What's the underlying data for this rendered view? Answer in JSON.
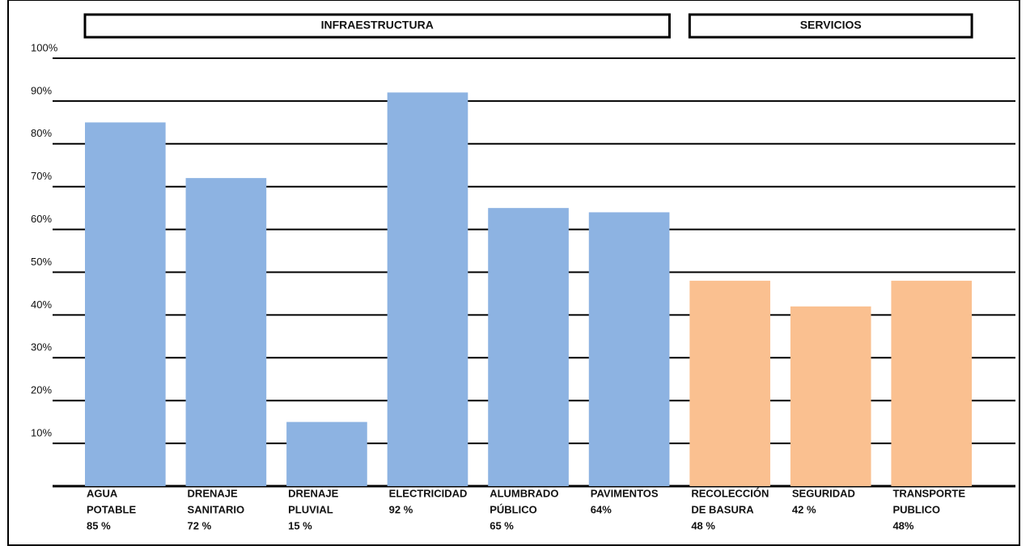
{
  "chart_data": {
    "type": "bar",
    "groups": [
      {
        "name": "INFRAESTRUCTURA",
        "color": "#8db3e2",
        "categories": [
          [
            "AGUA",
            "POTABLE"
          ],
          [
            "DRENAJE",
            "SANITARIO"
          ],
          [
            "DRENAJE",
            "PLUVIAL"
          ],
          [
            "ELECTRICIDAD"
          ],
          [
            "ALUMBRADO",
            "PÚBLICO"
          ],
          [
            "PAVIMENTOS"
          ]
        ],
        "values": [
          85,
          72,
          15,
          92,
          65,
          64
        ],
        "value_labels": [
          "85 %",
          "72 %",
          "15 %",
          "92 %",
          "65 %",
          "64%"
        ]
      },
      {
        "name": "SERVICIOS",
        "color": "#fac090",
        "categories": [
          [
            "RECOLECCIÓN",
            "DE BASURA"
          ],
          [
            "SEGURIDAD"
          ],
          [
            "TRANSPORTE",
            "PUBLICO"
          ]
        ],
        "values": [
          48,
          42,
          48
        ],
        "value_labels": [
          "48 %",
          "42 %",
          "48%"
        ]
      }
    ],
    "ylim": [
      0,
      100
    ],
    "yticks": [
      {
        "value": 10,
        "label": "10%"
      },
      {
        "value": 20,
        "label": "20%"
      },
      {
        "value": 30,
        "label": "30%"
      },
      {
        "value": 40,
        "label": "40%"
      },
      {
        "value": 50,
        "label": "50%"
      },
      {
        "value": 60,
        "label": "60%"
      },
      {
        "value": 70,
        "label": "70%"
      },
      {
        "value": 80,
        "label": "80%"
      },
      {
        "value": 90,
        "label": "90%"
      },
      {
        "value": 100,
        "label": "100%"
      }
    ],
    "grid": true
  }
}
